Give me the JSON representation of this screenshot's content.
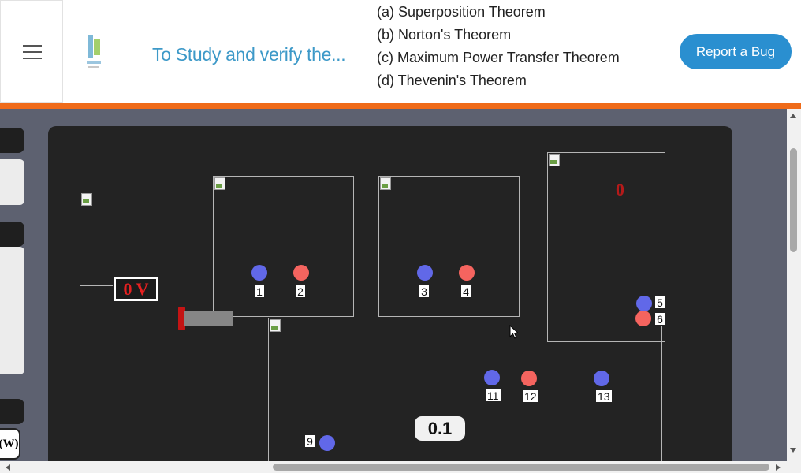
{
  "header": {
    "title": "To Study and verify the...",
    "options": [
      "(a) Superposition Theorem",
      "(b) Norton's Theorem",
      "(c) Maximum Power Transfer Theorem",
      "(d) Thevenin's Theorem"
    ],
    "report_bug_label": "Report a Bug",
    "menu_icon": "hamburger-icon"
  },
  "side_panel": {
    "w_label": "(W)"
  },
  "workspace": {
    "voltage_display": "0 V",
    "meter_reading": "0",
    "value_chip": "0.1",
    "terminals": [
      {
        "label": "1",
        "color": "#6168e8"
      },
      {
        "label": "2",
        "color": "#f5645f"
      },
      {
        "label": "3",
        "color": "#6168e8"
      },
      {
        "label": "4",
        "color": "#f5645f"
      },
      {
        "label": "5",
        "color": "#6168e8"
      },
      {
        "label": "6",
        "color": "#f5645f"
      },
      {
        "label": "9",
        "color": "#6168e8"
      },
      {
        "label": "11",
        "color": "#6168e8"
      },
      {
        "label": "12",
        "color": "#f5645f"
      },
      {
        "label": "13",
        "color": "#6168e8"
      }
    ]
  },
  "colors": {
    "accent": "#ef6b1a",
    "title": "#3d99c8",
    "button": "#2a8fd0",
    "workspace_bg": "#232323"
  }
}
